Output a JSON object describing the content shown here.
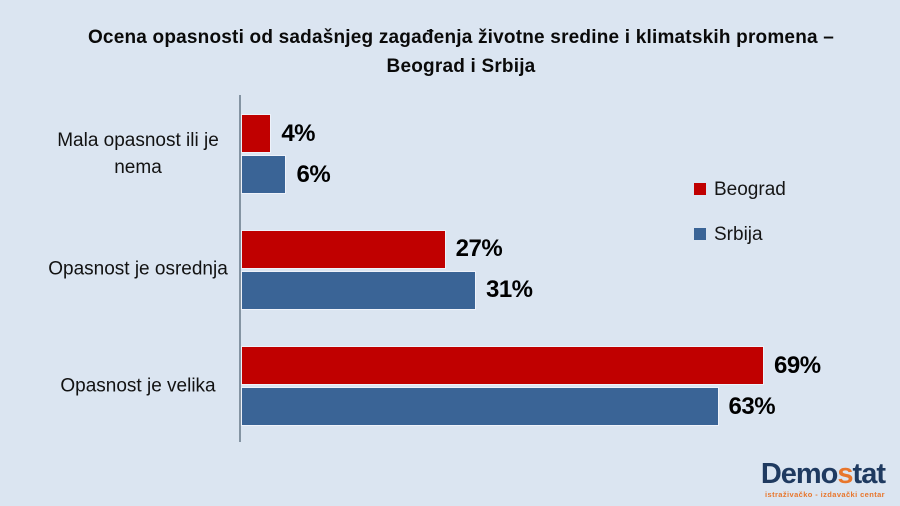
{
  "title": {
    "line1": "Ocena opasnosti od sadašnjeg zagađenja životne sredine i klimatskih promena –",
    "line2": "Beograd i Srbija"
  },
  "chart_data": {
    "type": "bar",
    "orientation": "horizontal",
    "title": "Ocena opasnosti od sadašnjeg zagađenja životne sredine i klimatskih promena – Beograd i Srbija",
    "categories": [
      "Mala opasnost ili je nema",
      "Opasnost je osrednja",
      "Opasnost je velika"
    ],
    "series": [
      {
        "name": "Beograd",
        "color": "#c00000",
        "values": [
          4,
          27,
          69
        ]
      },
      {
        "name": "Srbija",
        "color": "#3a6496",
        "values": [
          6,
          31,
          63
        ]
      }
    ],
    "value_suffix": "%",
    "xlim": [
      0,
      75
    ],
    "grid": false,
    "legend_position": "right",
    "data_labels": true
  },
  "colors": {
    "background": "#dbe5f1",
    "axis": "#8494a3",
    "beograd_red": "#c00000",
    "srbija_blue": "#3a6496"
  },
  "logo": {
    "part1": "Demo",
    "accent": "s",
    "part2": "tat",
    "tagline": "istraživačko - izdavački centar",
    "navy_color": "#1f3a60",
    "accent_color": "#e8762c"
  }
}
